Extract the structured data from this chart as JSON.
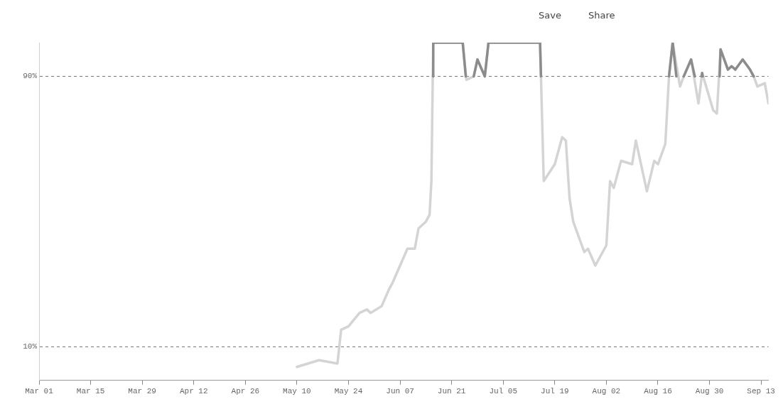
{
  "chart_data": {
    "type": "line",
    "annotations": [
      "Save",
      "Share"
    ],
    "xlim": [
      "--03-01",
      "--09-15"
    ],
    "xticks": [
      {
        "value": "--03-01",
        "label": "Mar 01"
      },
      {
        "value": "--03-15",
        "label": "Mar 15"
      },
      {
        "value": "--03-29",
        "label": "Mar 29"
      },
      {
        "value": "--04-12",
        "label": "Apr 12"
      },
      {
        "value": "--04-26",
        "label": "Apr 26"
      },
      {
        "value": "--05-10",
        "label": "May 10"
      },
      {
        "value": "--05-24",
        "label": "May 24"
      },
      {
        "value": "--06-07",
        "label": "Jun 07"
      },
      {
        "value": "--06-21",
        "label": "Jun 21"
      },
      {
        "value": "--07-05",
        "label": "Jul 05"
      },
      {
        "value": "--07-19",
        "label": "Jul 19"
      },
      {
        "value": "--08-02",
        "label": "Aug 02"
      },
      {
        "value": "--08-16",
        "label": "Aug 16"
      },
      {
        "value": "--08-30",
        "label": "Aug 30"
      },
      {
        "value": "--09-13",
        "label": "Sep 13"
      }
    ],
    "ylim": [
      0,
      100
    ],
    "yticks": [
      {
        "value": 10,
        "label": "10%"
      },
      {
        "value": 90,
        "label": "90%"
      }
    ],
    "grid": "y",
    "legend": false,
    "marker": "none",
    "line_style": "solid",
    "series": [
      {
        "color": "#8c8c8c",
        "x": [
          "--06-15T22:00",
          "--06-16",
          "--06-24",
          "--06-24T20:00",
          "--06-26",
          "--06-27",
          "--06-28",
          "--06-30",
          "--07-01",
          "--07-15",
          "--07-15T06:00",
          "--08-01",
          "--08-19",
          "--08-20",
          "--08-21",
          "--08-22",
          "--08-23",
          "--08-25",
          "--08-26",
          "--08-27",
          "--08-27T20:00",
          "--08-28",
          "--08-28T04:00",
          "--08-30",
          "--09-01T18:00",
          "--09-02",
          "--09-04",
          "--09-05",
          "--09-06",
          "--09-08",
          "--09-10",
          "--09-11"
        ],
        "values": [
          90,
          100,
          100,
          90,
          null,
          90,
          95,
          90,
          100,
          100,
          90,
          null,
          90,
          100,
          90,
          null,
          90,
          95,
          90,
          null,
          90,
          91,
          90,
          null,
          90,
          98,
          92,
          93,
          92,
          95,
          92,
          90
        ]
      },
      {
        "color": "#d4d4d4",
        "x": [
          "--05-10",
          "--05-16",
          "--05-21",
          "--05-22",
          "--05-24",
          "--05-27",
          "--05-29",
          "--05-30",
          "--06-02",
          "--06-04",
          "--06-05",
          "--06-07",
          "--06-09",
          "--06-11",
          "--06-12",
          "--06-14",
          "--06-15",
          "--06-15T12:00",
          "--06-16",
          "--06-24",
          "--06-25",
          "--06-27",
          "--06-28",
          "--06-30",
          "--07-01",
          "--07-15",
          "--07-16",
          "--07-19",
          "--07-21",
          "--07-22",
          "--07-23",
          "--07-24",
          "--07-27",
          "--07-28",
          "--07-30",
          "--08-02",
          "--08-03",
          "--08-04",
          "--08-06",
          "--08-09",
          "--08-10",
          "--08-13",
          "--08-15",
          "--08-16",
          "--08-18",
          "--08-19",
          "--08-20",
          "--08-22",
          "--08-23",
          "--08-25",
          "--08-27",
          "--08-28",
          "--08-31",
          "--09-01",
          "--09-02",
          "--09-04",
          "--09-05",
          "--09-06",
          "--09-08",
          "--09-10",
          "--09-11",
          "--09-12",
          "--09-14",
          "--09-15"
        ],
        "values": [
          4,
          6,
          5,
          15,
          16,
          20,
          21,
          20,
          22,
          27,
          29,
          34,
          39,
          39,
          45,
          47,
          49,
          59,
          100,
          100,
          89,
          90,
          95,
          90,
          100,
          100,
          59,
          64,
          72,
          71,
          54,
          47,
          38,
          39,
          34,
          40,
          59,
          57,
          65,
          64,
          71,
          56,
          65,
          64,
          70,
          90,
          100,
          87,
          90,
          95,
          82,
          91,
          80,
          79,
          98,
          92,
          93,
          92,
          95,
          92,
          90,
          87,
          88,
          82
        ]
      }
    ]
  }
}
